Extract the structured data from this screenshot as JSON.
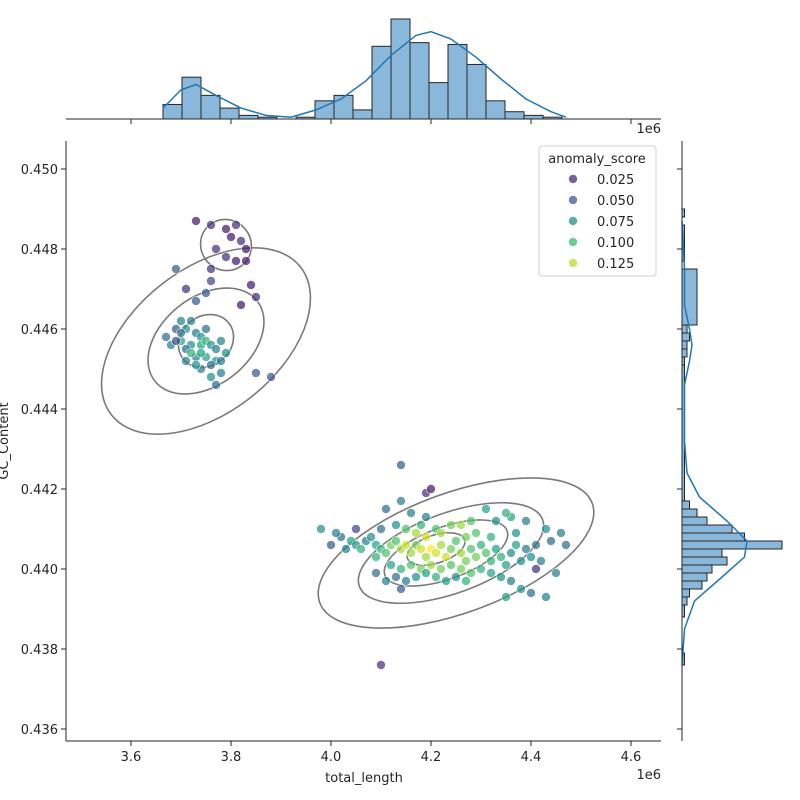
{
  "chart_data": {
    "type": "scatter",
    "title": "",
    "xlabel": "total_length",
    "ylabel": "GC_Content",
    "x_offset_label": "1e6",
    "top_offset_label": "1e6",
    "xlim": [
      3.47,
      4.66
    ],
    "ylim": [
      0.4357,
      0.4507
    ],
    "x_ticks": [
      "3.6",
      "3.8",
      "4.0",
      "4.2",
      "4.4",
      "4.6"
    ],
    "y_ticks": [
      "0.436",
      "0.438",
      "0.440",
      "0.442",
      "0.444",
      "0.446",
      "0.448",
      "0.450"
    ],
    "legend": {
      "title": "anomaly_score",
      "placement": "top-right",
      "entries": [
        {
          "label": "0.025",
          "color": "#472d7b"
        },
        {
          "label": "0.050",
          "color": "#3b5a8d"
        },
        {
          "label": "0.075",
          "color": "#21918c"
        },
        {
          "label": "0.100",
          "color": "#3dbc74"
        },
        {
          "label": "0.125",
          "color": "#b5de2b"
        }
      ]
    },
    "points": [
      [
        3.73,
        0.4487,
        0.01
      ],
      [
        3.76,
        0.4486,
        0.02
      ],
      [
        3.79,
        0.4485,
        0.01
      ],
      [
        3.81,
        0.4486,
        0.02
      ],
      [
        3.8,
        0.4483,
        0.01
      ],
      [
        3.82,
        0.4482,
        0.02
      ],
      [
        3.83,
        0.448,
        0.01
      ],
      [
        3.77,
        0.448,
        0.02
      ],
      [
        3.81,
        0.4477,
        0.01
      ],
      [
        3.83,
        0.4477,
        0.01
      ],
      [
        3.79,
        0.4478,
        0.02
      ],
      [
        3.76,
        0.4475,
        0.02
      ],
      [
        3.69,
        0.4475,
        0.04
      ],
      [
        3.76,
        0.4472,
        0.03
      ],
      [
        3.71,
        0.447,
        0.02
      ],
      [
        3.84,
        0.4471,
        0.01
      ],
      [
        3.85,
        0.4468,
        0.02
      ],
      [
        3.82,
        0.4466,
        0.01
      ],
      [
        3.75,
        0.4469,
        0.04
      ],
      [
        3.73,
        0.4467,
        0.04
      ],
      [
        3.72,
        0.4462,
        0.06
      ],
      [
        3.7,
        0.4462,
        0.06
      ],
      [
        3.69,
        0.446,
        0.04
      ],
      [
        3.71,
        0.446,
        0.07
      ],
      [
        3.73,
        0.4459,
        0.06
      ],
      [
        3.74,
        0.4458,
        0.07
      ],
      [
        3.67,
        0.4458,
        0.05
      ],
      [
        3.68,
        0.4456,
        0.06
      ],
      [
        3.7,
        0.4457,
        0.08
      ],
      [
        3.72,
        0.4456,
        0.07
      ],
      [
        3.74,
        0.4456,
        0.08
      ],
      [
        3.75,
        0.4457,
        0.09
      ],
      [
        3.76,
        0.4456,
        0.07
      ],
      [
        3.77,
        0.4455,
        0.06
      ],
      [
        3.78,
        0.4457,
        0.06
      ],
      [
        3.79,
        0.4454,
        0.07
      ],
      [
        3.71,
        0.4455,
        0.05
      ],
      [
        3.73,
        0.4453,
        0.06
      ],
      [
        3.75,
        0.4453,
        0.08
      ],
      [
        3.77,
        0.4452,
        0.07
      ],
      [
        3.78,
        0.4452,
        0.06
      ],
      [
        3.76,
        0.4451,
        0.05
      ],
      [
        3.74,
        0.445,
        0.06
      ],
      [
        3.73,
        0.4451,
        0.07
      ],
      [
        3.72,
        0.4454,
        0.09
      ],
      [
        3.69,
        0.4457,
        0.03
      ],
      [
        3.7,
        0.4459,
        0.05
      ],
      [
        3.75,
        0.446,
        0.05
      ],
      [
        3.78,
        0.4449,
        0.06
      ],
      [
        3.77,
        0.4446,
        0.05
      ],
      [
        3.76,
        0.4448,
        0.07
      ],
      [
        3.85,
        0.4449,
        0.04
      ],
      [
        3.88,
        0.4448,
        0.04
      ],
      [
        3.71,
        0.4452,
        0.06
      ],
      [
        3.74,
        0.4454,
        0.08
      ],
      [
        4.14,
        0.4426,
        0.04
      ],
      [
        4.19,
        0.4419,
        0.02
      ],
      [
        4.2,
        0.442,
        0.01
      ],
      [
        4.14,
        0.4417,
        0.06
      ],
      [
        4.11,
        0.4415,
        0.05
      ],
      [
        4.16,
        0.4414,
        0.06
      ],
      [
        4.19,
        0.4413,
        0.06
      ],
      [
        4.1,
        0.441,
        0.05
      ],
      [
        4.13,
        0.4411,
        0.07
      ],
      [
        4.15,
        0.441,
        0.1
      ],
      [
        4.18,
        0.4411,
        0.09
      ],
      [
        4.21,
        0.441,
        0.1
      ],
      [
        4.24,
        0.4411,
        0.11
      ],
      [
        4.26,
        0.4411,
        0.12
      ],
      [
        4.28,
        0.4412,
        0.1
      ],
      [
        4.31,
        0.4415,
        0.08
      ],
      [
        4.33,
        0.4412,
        0.07
      ],
      [
        4.36,
        0.4413,
        0.08
      ],
      [
        4.39,
        0.4412,
        0.06
      ],
      [
        4.35,
        0.4414,
        0.09
      ],
      [
        3.98,
        0.441,
        0.07
      ],
      [
        4.0,
        0.4406,
        0.04
      ],
      [
        4.02,
        0.4408,
        0.05
      ],
      [
        4.03,
        0.4405,
        0.06
      ],
      [
        4.04,
        0.4407,
        0.08
      ],
      [
        4.05,
        0.4406,
        0.07
      ],
      [
        4.06,
        0.4405,
        0.09
      ],
      [
        4.07,
        0.4407,
        0.06
      ],
      [
        4.08,
        0.4408,
        0.07
      ],
      [
        4.09,
        0.4406,
        0.08
      ],
      [
        4.1,
        0.4405,
        0.09
      ],
      [
        4.11,
        0.4404,
        0.1
      ],
      [
        4.12,
        0.4406,
        0.11
      ],
      [
        4.13,
        0.4407,
        0.1
      ],
      [
        4.14,
        0.4405,
        0.12
      ],
      [
        4.15,
        0.4406,
        0.13
      ],
      [
        4.16,
        0.4404,
        0.12
      ],
      [
        4.17,
        0.4406,
        0.11
      ],
      [
        4.18,
        0.4405,
        0.13
      ],
      [
        4.19,
        0.4403,
        0.12
      ],
      [
        4.2,
        0.4405,
        0.14
      ],
      [
        4.21,
        0.4404,
        0.13
      ],
      [
        4.22,
        0.4406,
        0.12
      ],
      [
        4.23,
        0.4403,
        0.13
      ],
      [
        4.24,
        0.4405,
        0.11
      ],
      [
        4.25,
        0.4407,
        0.1
      ],
      [
        4.26,
        0.4404,
        0.12
      ],
      [
        4.27,
        0.4402,
        0.11
      ],
      [
        4.28,
        0.4405,
        0.1
      ],
      [
        4.29,
        0.4403,
        0.11
      ],
      [
        4.3,
        0.4406,
        0.09
      ],
      [
        4.31,
        0.4404,
        0.1
      ],
      [
        4.32,
        0.4402,
        0.09
      ],
      [
        4.33,
        0.4405,
        0.08
      ],
      [
        4.34,
        0.4403,
        0.09
      ],
      [
        4.35,
        0.4401,
        0.08
      ],
      [
        4.36,
        0.4404,
        0.07
      ],
      [
        4.37,
        0.4406,
        0.08
      ],
      [
        4.38,
        0.4402,
        0.07
      ],
      [
        4.39,
        0.4405,
        0.06
      ],
      [
        4.4,
        0.4403,
        0.07
      ],
      [
        4.41,
        0.4406,
        0.05
      ],
      [
        4.42,
        0.4402,
        0.06
      ],
      [
        4.44,
        0.4407,
        0.05
      ],
      [
        4.46,
        0.4409,
        0.06
      ],
      [
        4.47,
        0.4406,
        0.05
      ],
      [
        4.43,
        0.441,
        0.07
      ],
      [
        4.45,
        0.4399,
        0.06
      ],
      [
        4.09,
        0.4403,
        0.09
      ],
      [
        4.12,
        0.4401,
        0.08
      ],
      [
        4.14,
        0.44,
        0.09
      ],
      [
        4.16,
        0.4401,
        0.1
      ],
      [
        4.18,
        0.44,
        0.11
      ],
      [
        4.2,
        0.4401,
        0.12
      ],
      [
        4.22,
        0.44,
        0.11
      ],
      [
        4.24,
        0.4401,
        0.1
      ],
      [
        4.26,
        0.44,
        0.11
      ],
      [
        4.28,
        0.4399,
        0.1
      ],
      [
        4.3,
        0.44,
        0.09
      ],
      [
        4.32,
        0.4399,
        0.08
      ],
      [
        4.34,
        0.4398,
        0.07
      ],
      [
        4.36,
        0.4397,
        0.06
      ],
      [
        4.38,
        0.4395,
        0.07
      ],
      [
        4.4,
        0.4394,
        0.05
      ],
      [
        4.43,
        0.4393,
        0.06
      ],
      [
        4.27,
        0.4397,
        0.09
      ],
      [
        4.25,
        0.4398,
        0.07
      ],
      [
        4.23,
        0.4397,
        0.08
      ],
      [
        4.21,
        0.4398,
        0.09
      ],
      [
        4.19,
        0.4399,
        0.08
      ],
      [
        4.17,
        0.4398,
        0.07
      ],
      [
        4.15,
        0.4397,
        0.06
      ],
      [
        4.13,
        0.4398,
        0.05
      ],
      [
        4.11,
        0.4397,
        0.06
      ],
      [
        4.09,
        0.4399,
        0.05
      ],
      [
        4.14,
        0.4395,
        0.04
      ],
      [
        4.1,
        0.4376,
        0.02
      ],
      [
        4.35,
        0.4393,
        0.08
      ],
      [
        4.41,
        0.44,
        0.02
      ],
      [
        4.05,
        0.441,
        0.03
      ],
      [
        4.01,
        0.4409,
        0.06
      ],
      [
        4.22,
        0.4409,
        0.12
      ],
      [
        4.19,
        0.4408,
        0.13
      ],
      [
        4.17,
        0.4409,
        0.12
      ],
      [
        4.27,
        0.4408,
        0.11
      ],
      [
        4.29,
        0.4409,
        0.1
      ],
      [
        4.32,
        0.4408,
        0.09
      ],
      [
        4.37,
        0.4409,
        0.07
      ]
    ],
    "contours": [
      {
        "center": [
          3.79,
          0.4481
        ],
        "radii": [
          0.05,
          0.00065
        ],
        "angle": -40
      },
      {
        "center": [
          3.75,
          0.4457
        ],
        "radii": [
          0.058,
          0.00062
        ],
        "angle": -38
      },
      {
        "center": [
          3.75,
          0.4457
        ],
        "radii": [
          0.13,
          0.0011
        ],
        "angle": -38
      },
      {
        "center": [
          3.75,
          0.4457
        ],
        "radii": [
          0.24,
          0.0018
        ],
        "angle": -38
      },
      {
        "center": [
          4.21,
          0.4405
        ],
        "radii": [
          0.06,
          0.00035
        ],
        "angle": -18
      },
      {
        "center": [
          4.23,
          0.4404
        ],
        "radii": [
          0.13,
          0.00065
        ],
        "angle": -20
      },
      {
        "center": [
          4.24,
          0.4404
        ],
        "radii": [
          0.195,
          0.001
        ],
        "angle": -20
      },
      {
        "center": [
          4.25,
          0.4404
        ],
        "radii": [
          0.29,
          0.0015
        ],
        "angle": -20
      }
    ],
    "marginal_x_hist": {
      "bins": [
        3.664,
        3.702,
        3.74,
        3.778,
        3.816,
        3.854,
        3.892,
        3.93,
        3.968,
        4.006,
        4.044,
        4.082,
        4.12,
        4.158,
        4.196,
        4.234,
        4.272,
        4.31,
        4.348,
        4.386,
        4.424,
        4.462
      ],
      "counts": [
        8,
        23,
        13,
        6,
        2,
        1,
        0,
        1,
        10,
        13,
        5,
        40,
        55,
        42,
        20,
        41,
        30,
        10,
        4,
        2,
        1
      ],
      "kde": [
        [
          3.664,
          6
        ],
        [
          3.7,
          16
        ],
        [
          3.73,
          19
        ],
        [
          3.77,
          13
        ],
        [
          3.82,
          6
        ],
        [
          3.87,
          2
        ],
        [
          3.92,
          1
        ],
        [
          3.97,
          5
        ],
        [
          4.02,
          11
        ],
        [
          4.07,
          21
        ],
        [
          4.12,
          35
        ],
        [
          4.17,
          46
        ],
        [
          4.2,
          48
        ],
        [
          4.24,
          44
        ],
        [
          4.29,
          34
        ],
        [
          4.34,
          22
        ],
        [
          4.39,
          11
        ],
        [
          4.44,
          4
        ],
        [
          4.47,
          1
        ]
      ]
    },
    "marginal_y_hist": {
      "bins": [
        0.4376,
        0.4379,
        0.4382,
        0.4385,
        0.4388,
        0.4391,
        0.4393,
        0.4395,
        0.4397,
        0.4399,
        0.4401,
        0.4403,
        0.4405,
        0.4407,
        0.4409,
        0.4411,
        0.4413,
        0.4415,
        0.4417,
        0.4451,
        0.4453,
        0.4455,
        0.4457,
        0.4459,
        0.4461,
        0.4475,
        0.4477,
        0.4486,
        0.4488
      ],
      "counts": [
        1,
        0,
        0,
        0,
        1,
        2,
        3,
        8,
        10,
        12,
        18,
        16,
        40,
        25,
        20,
        10,
        6,
        3,
        1,
        1,
        2,
        2,
        3,
        2,
        6,
        0,
        1,
        0,
        1
      ],
      "kde": [
        [
          0.4376,
          0
        ],
        [
          0.4385,
          1
        ],
        [
          0.4392,
          5
        ],
        [
          0.4398,
          16
        ],
        [
          0.4403,
          25
        ],
        [
          0.4407,
          26
        ],
        [
          0.4412,
          18
        ],
        [
          0.4418,
          7
        ],
        [
          0.4424,
          2
        ],
        [
          0.4432,
          1
        ],
        [
          0.444,
          1
        ],
        [
          0.4446,
          1
        ],
        [
          0.4452,
          3
        ],
        [
          0.4456,
          4
        ],
        [
          0.446,
          3
        ],
        [
          0.4466,
          1
        ],
        [
          0.4475,
          1
        ],
        [
          0.4487,
          0
        ]
      ]
    }
  }
}
